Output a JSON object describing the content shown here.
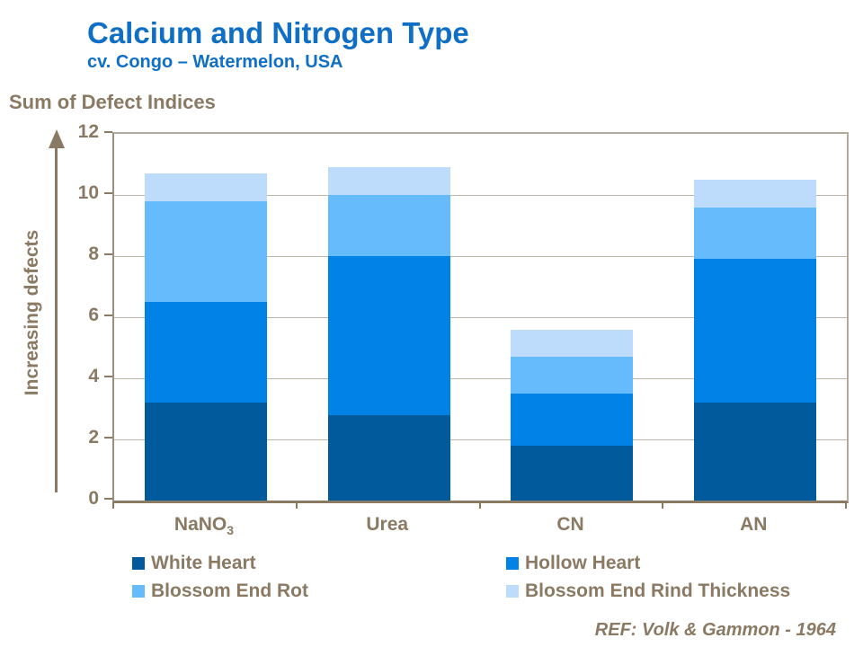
{
  "header": {
    "title": "Calcium and Nitrogen Type",
    "subtitle": "cv. Congo – Watermelon, USA"
  },
  "chart": {
    "y_heading": "Sum of Defect Indices",
    "y_axis_title": "Increasing defects"
  },
  "footer": {
    "reference": "REF: Volk & Gammon - 1964"
  },
  "colors": {
    "title_blue": "#0F6FC6",
    "axis_brown": "#8A7963",
    "grid_gray": "#BFB5A7",
    "border_tan": "#B3A99C",
    "white_heart": "#005A9B",
    "hollow_heart": "#0082E6",
    "blossom_end_rot": "#66BBFC",
    "blossom_end_rind_thickness": "#BDDCFB"
  },
  "chart_data": {
    "type": "bar",
    "stacked": true,
    "title": "Calcium and Nitrogen Type",
    "subtitle": "cv. Congo – Watermelon, USA",
    "xlabel": "",
    "ylabel": "Increasing defects",
    "y_heading": "Sum of Defect Indices",
    "categories": [
      "NaNO₃",
      "Urea",
      "CN",
      "AN"
    ],
    "categories_display": [
      {
        "base": "NaNO",
        "sub": "3"
      },
      {
        "base": "Urea",
        "sub": ""
      },
      {
        "base": "CN",
        "sub": ""
      },
      {
        "base": "AN",
        "sub": ""
      }
    ],
    "series": [
      {
        "name": "White Heart",
        "color": "#005A9B",
        "values": [
          3.2,
          2.8,
          1.8,
          3.2
        ]
      },
      {
        "name": "Hollow Heart",
        "color": "#0082E6",
        "values": [
          3.3,
          5.2,
          1.7,
          4.7
        ]
      },
      {
        "name": "Blossom End Rot",
        "color": "#66BBFC",
        "values": [
          3.3,
          2.0,
          1.2,
          1.7
        ]
      },
      {
        "name": "Blossom End Rind Thickness",
        "color": "#BDDCFB",
        "values": [
          0.9,
          0.9,
          0.9,
          0.9
        ]
      }
    ],
    "stack_totals": [
      10.7,
      10.9,
      5.6,
      10.5
    ],
    "ylim": [
      0,
      12
    ],
    "yticks": [
      0,
      2,
      4,
      6,
      8,
      10,
      12
    ],
    "grid": "horizontal",
    "legend_position": "bottom",
    "legend_columns": 2
  }
}
